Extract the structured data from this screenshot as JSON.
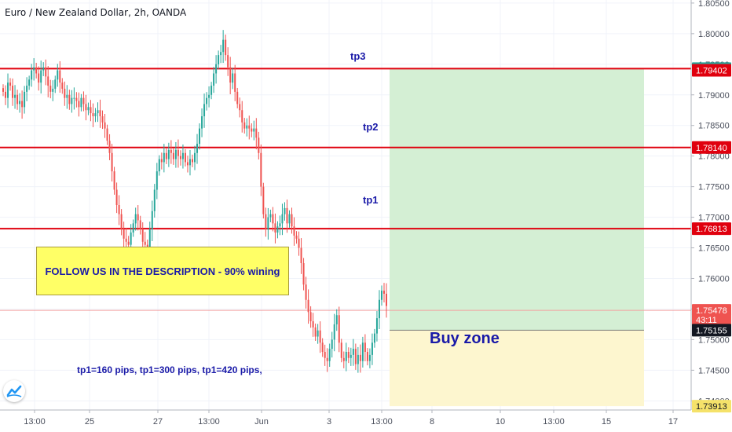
{
  "header": {
    "title": "Euro / New Zealand Dollar, 2h, OANDA"
  },
  "annotations": {
    "follow_text": "FOLLOW US IN THE DESCRIPTION - 90% wining",
    "pips_text": "tp1=160 pips, tp1=300 pips, tp1=420 pips,",
    "buy_zone": "Buy zone",
    "tp1": "tp1",
    "tp2": "tp2",
    "tp3": "tp3"
  },
  "colors": {
    "up": "#26a69a",
    "down": "#ef5350",
    "tp_line": "#e0000e",
    "profit_zone": "#d4efd4",
    "buy_zone": "#fdf6cf",
    "text_blue": "#1a1aa8"
  },
  "chart_data": {
    "type": "candlestick",
    "title": "Euro / New Zealand Dollar, 2h, OANDA",
    "ylim": [
      1.7385,
      1.8055
    ],
    "y_ticks": [
      "1.80500",
      "1.80000",
      "1.79500",
      "1.79000",
      "1.78500",
      "1.78000",
      "1.77500",
      "1.77000",
      "1.76500",
      "1.76000",
      "1.75500",
      "1.75000",
      "1.74500",
      "1.74000"
    ],
    "x_ticks": [
      "13:00",
      "25",
      "27",
      "13:00",
      "Jun",
      "3",
      "13:00",
      "8",
      "10",
      "13:00",
      "15",
      "17"
    ],
    "horizontal_lines": [
      {
        "label": "tp3",
        "value": 1.79428
      },
      {
        "label": "tp2",
        "value": 1.7814
      },
      {
        "label": "tp1",
        "value": 1.76813
      }
    ],
    "price_labels": [
      {
        "text": "1.79428",
        "value": 1.79428,
        "bg": "#26a69a"
      },
      {
        "text": "1.79402",
        "value": 1.79402,
        "bg": "#e0000e"
      },
      {
        "text": "1.78140",
        "value": 1.7814,
        "bg": "#e0000e"
      },
      {
        "text": "1.76813",
        "value": 1.76813,
        "bg": "#e0000e"
      },
      {
        "text": "1.75478",
        "value": 1.75478,
        "bg": "#ef5350"
      },
      {
        "text": "43:11",
        "value": 1.75325,
        "bg": "#ef5350"
      },
      {
        "text": "1.75155",
        "value": 1.75155,
        "bg": "#131722"
      },
      {
        "text": "1.73913",
        "value": 1.73913,
        "bg": "#f5e26a"
      }
    ],
    "long_position": {
      "entry": 1.75155,
      "target": 1.79428,
      "stop": 1.73913
    },
    "last_price": 1.75478,
    "closes": [
      1.7905,
      1.7895,
      1.792,
      1.7915,
      1.7895,
      1.79,
      1.7885,
      1.789,
      1.788,
      1.7905,
      1.7915,
      1.7925,
      1.794,
      1.7945,
      1.7935,
      1.792,
      1.794,
      1.7945,
      1.793,
      1.7915,
      1.7905,
      1.791,
      1.7925,
      1.794,
      1.792,
      1.791,
      1.7895,
      1.79,
      1.7885,
      1.7895,
      1.7895,
      1.789,
      1.788,
      1.7895,
      1.7885,
      1.7875,
      1.788,
      1.787,
      1.7865,
      1.787,
      1.7875,
      1.7865,
      1.7855,
      1.7845,
      1.7825,
      1.7805,
      1.7775,
      1.7745,
      1.772,
      1.7705,
      1.768,
      1.7665,
      1.766,
      1.7655,
      1.7675,
      1.769,
      1.7705,
      1.7695,
      1.768,
      1.766,
      1.7655,
      1.765,
      1.768,
      1.771,
      1.7745,
      1.7775,
      1.7795,
      1.779,
      1.7805,
      1.7795,
      1.781,
      1.7805,
      1.7795,
      1.781,
      1.78,
      1.7795,
      1.7805,
      1.779,
      1.7785,
      1.7795,
      1.779,
      1.7805,
      1.782,
      1.7845,
      1.7865,
      1.7885,
      1.7895,
      1.79,
      1.7915,
      1.7935,
      1.795,
      1.7965,
      1.797,
      1.799,
      1.7965,
      1.7945,
      1.792,
      1.7935,
      1.7905,
      1.7885,
      1.7875,
      1.7855,
      1.7845,
      1.785,
      1.7845,
      1.784,
      1.7845,
      1.783,
      1.7805,
      1.775,
      1.7705,
      1.768,
      1.77,
      1.7705,
      1.769,
      1.7675,
      1.7685,
      1.769,
      1.7705,
      1.7715,
      1.769,
      1.7705,
      1.7685,
      1.767,
      1.7665,
      1.765,
      1.7625,
      1.759,
      1.7565,
      1.7545,
      1.753,
      1.752,
      1.7505,
      1.7515,
      1.7495,
      1.748,
      1.747,
      1.7465,
      1.7485,
      1.75,
      1.7525,
      1.754,
      1.7495,
      1.747,
      1.7465,
      1.748,
      1.747,
      1.7475,
      1.7485,
      1.746,
      1.7475,
      1.7465,
      1.7495,
      1.748,
      1.7465,
      1.7475,
      1.7495,
      1.751,
      1.7535,
      1.7565,
      1.758,
      1.7575,
      1.7555
    ]
  }
}
